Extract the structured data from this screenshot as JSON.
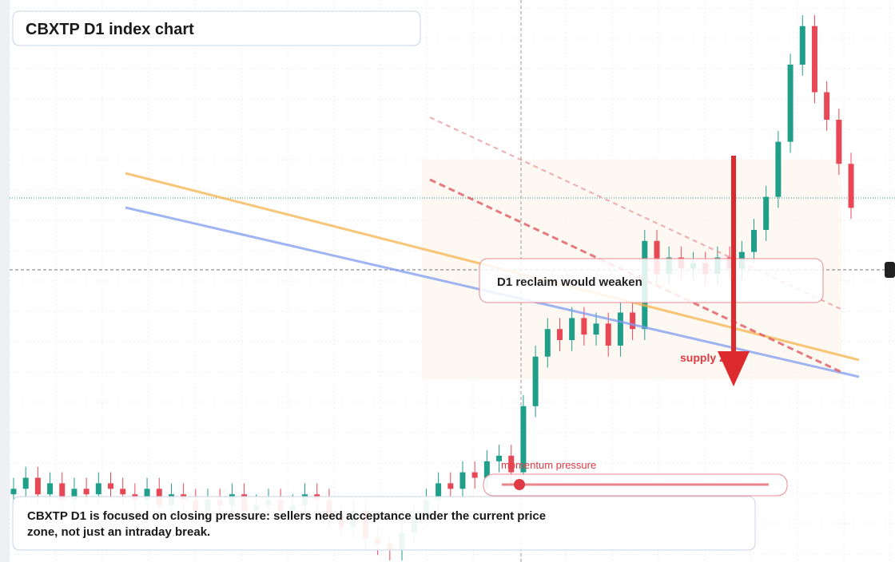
{
  "chart_data": {
    "type": "candlestick",
    "title": "CBXTP D1 index chart",
    "annotations": {
      "resistance": "D1 reclaim would weaken",
      "zone": "supply zone",
      "momentum": "momentum pressure",
      "caption": "CBXTP D1 is focused on closing pressure: sellers need acceptance under the current price zone, not just an intraday break."
    },
    "up_color": "#1f9e89",
    "down_color": "#e84855",
    "ylim": [
      0,
      100
    ],
    "open": [
      12,
      13,
      15,
      12,
      14,
      11,
      13,
      12,
      14,
      13,
      12,
      11,
      13,
      10,
      12,
      11,
      9,
      11,
      10,
      12,
      9,
      10,
      11,
      9,
      10,
      12,
      11,
      8,
      6,
      9,
      4,
      3,
      2,
      5,
      8,
      11,
      14,
      13,
      16,
      15,
      18,
      19,
      16,
      28,
      37,
      42,
      40,
      44,
      41,
      43,
      39,
      45,
      42,
      58,
      52,
      55,
      53,
      54,
      52,
      55,
      53,
      56,
      60,
      66,
      76,
      90,
      97,
      85,
      80,
      72
    ],
    "high": [
      15,
      17,
      17,
      16,
      16,
      15,
      15,
      16,
      16,
      15,
      14,
      15,
      15,
      14,
      14,
      13,
      13,
      13,
      14,
      14,
      12,
      13,
      13,
      12,
      14,
      14,
      13,
      10,
      11,
      11,
      6,
      5,
      7,
      10,
      13,
      16,
      16,
      18,
      18,
      20,
      21,
      21,
      30,
      39,
      44,
      44,
      46,
      46,
      45,
      45,
      47,
      47,
      60,
      60,
      57,
      57,
      56,
      56,
      57,
      57,
      58,
      62,
      68,
      78,
      92,
      99,
      99,
      87,
      82,
      74
    ],
    "low": [
      10,
      11,
      10,
      10,
      9,
      9,
      10,
      10,
      11,
      10,
      9,
      9,
      8,
      8,
      9,
      7,
      7,
      8,
      8,
      7,
      7,
      8,
      7,
      7,
      8,
      9,
      6,
      4,
      4,
      2,
      1,
      0,
      0,
      3,
      6,
      9,
      11,
      11,
      13,
      13,
      16,
      14,
      14,
      26,
      35,
      38,
      38,
      39,
      39,
      37,
      37,
      40,
      40,
      50,
      50,
      51,
      51,
      50,
      50,
      51,
      51,
      54,
      58,
      64,
      74,
      88,
      83,
      78,
      70,
      62
    ],
    "close": [
      13,
      15,
      12,
      14,
      11,
      13,
      12,
      14,
      13,
      12,
      11,
      13,
      10,
      12,
      11,
      9,
      11,
      10,
      12,
      9,
      10,
      11,
      9,
      10,
      12,
      11,
      8,
      6,
      9,
      4,
      3,
      2,
      5,
      8,
      11,
      14,
      13,
      16,
      15,
      18,
      19,
      16,
      28,
      37,
      42,
      40,
      44,
      41,
      43,
      39,
      45,
      42,
      58,
      52,
      55,
      53,
      54,
      52,
      55,
      53,
      56,
      60,
      66,
      76,
      90,
      97,
      85,
      80,
      72,
      64
    ]
  }
}
